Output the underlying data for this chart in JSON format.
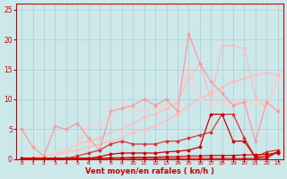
{
  "bg_color": "#cce8ea",
  "grid_color": "#aacccc",
  "xlabel": "Vent moyen/en rafales ( kn/h )",
  "xlabel_color": "#cc0000",
  "tick_color": "#cc0000",
  "axis_line_color": "#cc0000",
  "ylim": [
    0,
    26
  ],
  "xlim": [
    -0.5,
    23.5
  ],
  "yticks": [
    0,
    5,
    10,
    15,
    20,
    25
  ],
  "xticks": [
    0,
    1,
    2,
    3,
    4,
    5,
    6,
    7,
    8,
    9,
    10,
    11,
    12,
    13,
    14,
    15,
    16,
    17,
    18,
    19,
    20,
    21,
    22,
    23
  ],
  "series": [
    {
      "x": [
        0,
        1,
        2,
        3,
        4,
        5,
        6,
        7,
        8,
        9,
        10,
        11,
        12,
        13,
        14,
        15,
        16,
        17,
        18,
        19,
        20,
        21,
        22,
        23
      ],
      "y": [
        0.1,
        0.1,
        0.1,
        0.1,
        0.1,
        0.1,
        0.1,
        0.1,
        0.1,
        0.1,
        0.1,
        0.1,
        0.1,
        0.1,
        0.1,
        0.1,
        0.1,
        0.1,
        0.1,
        0.1,
        0.1,
        0.1,
        0.1,
        1.2
      ],
      "color": "#cc0000",
      "lw": 0.8,
      "marker": "D",
      "ms": 1.5,
      "zorder": 5
    },
    {
      "x": [
        0,
        1,
        2,
        3,
        4,
        5,
        6,
        7,
        8,
        9,
        10,
        11,
        12,
        13,
        14,
        15,
        16,
        17,
        18,
        19,
        20,
        21,
        22,
        23
      ],
      "y": [
        0.1,
        0.1,
        0.1,
        0.1,
        0.1,
        0.1,
        0.1,
        0.1,
        0.2,
        0.2,
        0.3,
        0.3,
        0.3,
        0.4,
        0.4,
        0.5,
        0.5,
        0.6,
        0.6,
        0.6,
        0.7,
        0.7,
        0.8,
        1.0
      ],
      "color": "#cc0000",
      "lw": 0.8,
      "marker": "D",
      "ms": 1.5,
      "zorder": 5
    },
    {
      "x": [
        0,
        1,
        2,
        3,
        4,
        5,
        6,
        7,
        8,
        9,
        10,
        11,
        12,
        13,
        14,
        15,
        16,
        17,
        18,
        19,
        20,
        21,
        22,
        23
      ],
      "y": [
        0.1,
        0.1,
        0.1,
        0.1,
        0.1,
        0.1,
        0.1,
        0.4,
        0.8,
        1.0,
        1.0,
        1.0,
        1.0,
        1.2,
        1.3,
        1.5,
        2.0,
        7.5,
        7.5,
        3.0,
        3.0,
        0.2,
        0.5,
        1.2
      ],
      "color": "#cc0000",
      "lw": 0.9,
      "marker": "D",
      "ms": 1.5,
      "zorder": 5
    },
    {
      "x": [
        0,
        1,
        2,
        3,
        4,
        5,
        6,
        7,
        8,
        9,
        10,
        11,
        12,
        13,
        14,
        15,
        16,
        17,
        18,
        19,
        20,
        21,
        22,
        23
      ],
      "y": [
        0.1,
        0.1,
        0.1,
        0.1,
        0.1,
        0.5,
        1.0,
        1.5,
        2.5,
        3.0,
        2.5,
        2.5,
        2.5,
        3.0,
        3.0,
        3.5,
        4.0,
        4.5,
        7.5,
        7.5,
        3.5,
        0.3,
        1.2,
        1.5
      ],
      "color": "#dd3333",
      "lw": 0.9,
      "marker": "D",
      "ms": 1.5,
      "zorder": 4
    },
    {
      "x": [
        0,
        1,
        2,
        3,
        4,
        5,
        6,
        7,
        8,
        9,
        10,
        11,
        12,
        13,
        14,
        15,
        16,
        17,
        18,
        19,
        20,
        21,
        22,
        23
      ],
      "y": [
        5.0,
        2.0,
        0.5,
        5.5,
        5.0,
        6.0,
        3.5,
        1.5,
        8.0,
        8.5,
        9.0,
        10.0,
        9.0,
        10.0,
        8.0,
        21.0,
        16.0,
        13.0,
        11.0,
        9.0,
        9.5,
        3.0,
        9.5,
        8.0
      ],
      "color": "#ff9999",
      "lw": 0.9,
      "marker": "D",
      "ms": 1.5,
      "zorder": 3
    },
    {
      "x": [
        0,
        1,
        2,
        3,
        4,
        5,
        6,
        7,
        8,
        9,
        10,
        11,
        12,
        13,
        14,
        15,
        16,
        17,
        18,
        19,
        20,
        21,
        22,
        23
      ],
      "y": [
        0.1,
        0.3,
        0.5,
        0.8,
        1.2,
        1.5,
        2.0,
        2.5,
        3.0,
        3.5,
        4.5,
        5.0,
        5.5,
        6.5,
        7.5,
        9.0,
        10.0,
        11.0,
        12.0,
        13.0,
        13.5,
        14.0,
        14.5,
        14.0
      ],
      "color": "#ffbbbb",
      "lw": 0.9,
      "marker": "D",
      "ms": 1.5,
      "zorder": 2
    },
    {
      "x": [
        0,
        1,
        2,
        3,
        4,
        5,
        6,
        7,
        8,
        9,
        10,
        11,
        12,
        13,
        14,
        15,
        16,
        17,
        18,
        19,
        20,
        21,
        22,
        23
      ],
      "y": [
        0.1,
        0.3,
        0.5,
        1.0,
        1.5,
        2.5,
        3.0,
        3.5,
        4.5,
        5.0,
        6.0,
        7.0,
        7.5,
        8.5,
        9.5,
        13.5,
        16.0,
        10.0,
        19.0,
        19.0,
        18.5,
        10.5,
        8.5,
        13.5
      ],
      "color": "#ffbbbb",
      "lw": 0.9,
      "marker": "D",
      "ms": 1.5,
      "zorder": 2
    },
    {
      "x": [
        0,
        1,
        2,
        3,
        4,
        5,
        6,
        7,
        8,
        9,
        10,
        11,
        12,
        13,
        14,
        15,
        16,
        17,
        18,
        19,
        20,
        21,
        22,
        23
      ],
      "y": [
        0.1,
        0.3,
        0.5,
        1.0,
        1.5,
        2.5,
        5.5,
        6.0,
        7.0,
        9.5,
        8.0,
        8.0,
        8.5,
        9.0,
        9.0,
        15.5,
        10.0,
        9.0,
        9.5,
        9.5,
        9.5,
        9.5,
        8.5,
        13.5
      ],
      "color": "#ffcccc",
      "lw": 0.9,
      "marker": "D",
      "ms": 1.5,
      "zorder": 2
    }
  ]
}
